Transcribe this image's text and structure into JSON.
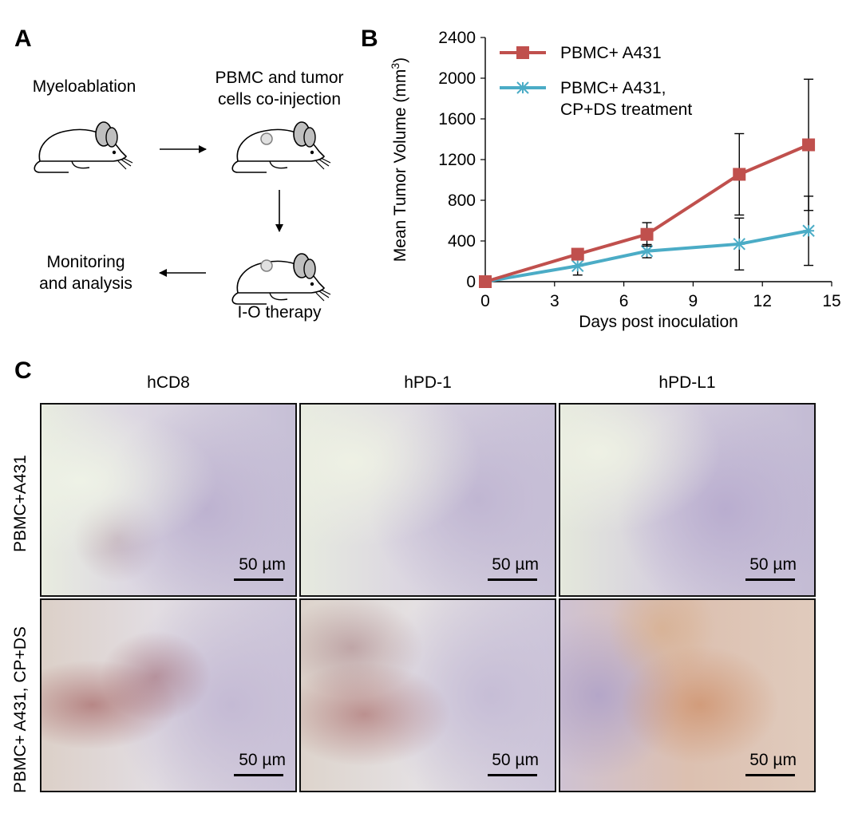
{
  "panel_a": {
    "letter": "A",
    "step1": "Myeloablation",
    "step2_line1": "PBMC and tumor",
    "step2_line2": "cells co-injection",
    "step3": "I-O therapy",
    "step4_line1": "Monitoring",
    "step4_line2": "and analysis"
  },
  "panel_b": {
    "letter": "B"
  },
  "chart_data": {
    "type": "line",
    "title": "",
    "xlabel": "Days post inoculation",
    "ylabel": "Mean Tumor Volume (mm³)",
    "ylabel_main": "Mean Tumor Volume (mm",
    "ylabel_sup": "3",
    "ylabel_end": ")",
    "xlim": [
      0,
      15
    ],
    "ylim": [
      0,
      2400
    ],
    "xticks": [
      0,
      3,
      6,
      9,
      12,
      15
    ],
    "yticks": [
      0,
      400,
      800,
      1200,
      1600,
      2000,
      2400
    ],
    "legend_position": "top-left",
    "series": [
      {
        "name": "PBMC+ A431",
        "color": "#c0504d",
        "marker": "square",
        "x": [
          0,
          4,
          7,
          11,
          14
        ],
        "y": [
          0,
          270,
          465,
          1055,
          1345
        ],
        "err": [
          0,
          50,
          115,
          400,
          645
        ]
      },
      {
        "name_line1": "PBMC+ A431,",
        "name_line2": "CP+DS treatment",
        "color": "#4bacc6",
        "marker": "asterisk",
        "x": [
          0,
          4,
          7,
          11,
          14
        ],
        "y": [
          0,
          155,
          300,
          370,
          500
        ],
        "err": [
          0,
          90,
          65,
          255,
          340
        ]
      }
    ]
  },
  "panel_c": {
    "letter": "C",
    "columns": [
      "hCD8",
      "hPD-1",
      "hPD-L1"
    ],
    "rows": [
      "PBMC+A431",
      "PBMC+ A431, CP+DS"
    ],
    "scale_label": "50 µm"
  }
}
